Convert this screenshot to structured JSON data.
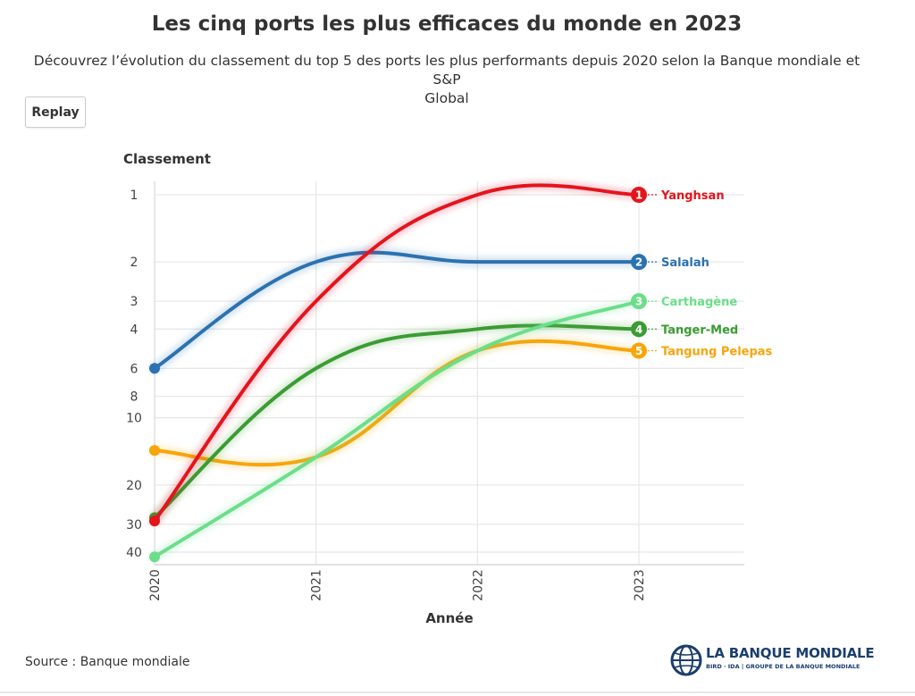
{
  "header": {
    "title": "Les cinq ports les plus efficaces du monde en 2023",
    "subtitle_line1": "Découvrez l’évolution du classement du top 5 des ports les plus performants depuis 2020 selon la Banque mondiale et S&P",
    "subtitle_line2": "Global"
  },
  "controls": {
    "replay_label": "Replay"
  },
  "footer": {
    "source": "Source : Banque mondiale",
    "logo_name": "LA BANQUE MONDIALE",
    "logo_sub": "BIRD · IDA | GROUPE DE LA BANQUE MONDIALE"
  },
  "chart_data": {
    "type": "line",
    "ylabel": "Classement",
    "xlabel": "Année",
    "y_scale": "log",
    "y_reversed": true,
    "ylim": [
      1,
      45
    ],
    "y_ticks": [
      1,
      2,
      3,
      4,
      6,
      8,
      10,
      20,
      30,
      40
    ],
    "x": [
      "2020",
      "2021",
      "2022",
      "2023"
    ],
    "grid": true,
    "smooth": true,
    "series": [
      {
        "name": "Yanghsan",
        "rank_label": "1",
        "color": "#e4141b",
        "values": [
          29,
          3,
          1,
          1
        ]
      },
      {
        "name": "Salalah",
        "rank_label": "2",
        "color": "#2b72b0",
        "values": [
          6,
          2,
          2,
          2
        ]
      },
      {
        "name": "Carthagène",
        "rank_label": "3",
        "color": "#6bde8a",
        "values": [
          42,
          15,
          5,
          3
        ]
      },
      {
        "name": "Tanger-Med",
        "rank_label": "4",
        "color": "#3a9c33",
        "values": [
          28,
          6,
          4,
          4
        ]
      },
      {
        "name": "Tangung Pelepas",
        "rank_label": "5",
        "color": "#f7a50a",
        "values": [
          14,
          15,
          5,
          5
        ]
      }
    ]
  }
}
